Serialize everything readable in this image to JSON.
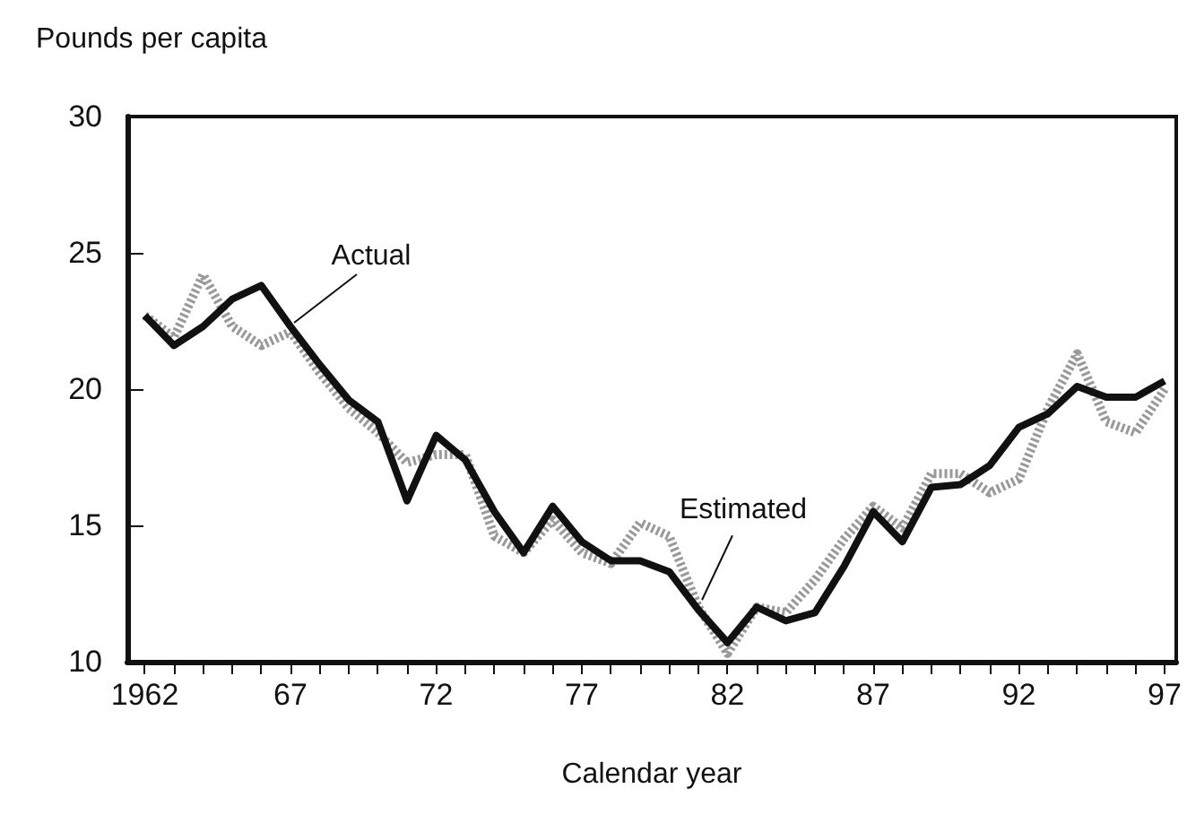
{
  "chart_data": {
    "type": "line",
    "ylabel": "Pounds per capita",
    "xlabel": "Calendar year",
    "x": [
      1962,
      1963,
      1964,
      1965,
      1966,
      1967,
      1968,
      1969,
      1970,
      1971,
      1972,
      1973,
      1974,
      1975,
      1976,
      1977,
      1978,
      1979,
      1980,
      1981,
      1982,
      1983,
      1984,
      1985,
      1986,
      1987,
      1988,
      1989,
      1990,
      1991,
      1992,
      1993,
      1994,
      1995,
      1996,
      1997
    ],
    "series": [
      {
        "name": "Actual",
        "color": "#111111",
        "line_style": "solid",
        "values": [
          22.7,
          21.6,
          22.3,
          23.3,
          23.8,
          22.3,
          20.9,
          19.6,
          18.8,
          15.9,
          18.3,
          17.4,
          15.5,
          14.0,
          15.7,
          14.4,
          13.7,
          13.7,
          13.3,
          11.9,
          10.7,
          12.0,
          11.5,
          11.8,
          13.5,
          15.5,
          14.4,
          16.4,
          16.5,
          17.2,
          18.6,
          19.1,
          20.1,
          19.7,
          19.7,
          20.3
        ]
      },
      {
        "name": "Estimated",
        "color": "#999999",
        "line_style": "dotted",
        "values": [
          22.7,
          21.9,
          24.2,
          22.3,
          21.6,
          22.1,
          20.6,
          19.3,
          18.4,
          17.3,
          17.6,
          17.6,
          14.6,
          14.0,
          15.2,
          14.0,
          13.6,
          15.1,
          14.6,
          12.0,
          10.3,
          12.0,
          11.8,
          13.0,
          14.5,
          15.7,
          14.9,
          16.9,
          16.9,
          16.2,
          16.7,
          19.3,
          21.3,
          18.8,
          18.4,
          20.0
        ]
      }
    ],
    "xlim": [
      1961.4,
      1997.4
    ],
    "xticks": [
      {
        "value": 1962,
        "label": "1962"
      },
      {
        "value": 1963,
        "label": null
      },
      {
        "value": 1964,
        "label": null
      },
      {
        "value": 1965,
        "label": null
      },
      {
        "value": 1966,
        "label": null
      },
      {
        "value": 1967,
        "label": "67"
      },
      {
        "value": 1968,
        "label": null
      },
      {
        "value": 1969,
        "label": null
      },
      {
        "value": 1970,
        "label": null
      },
      {
        "value": 1971,
        "label": null
      },
      {
        "value": 1972,
        "label": "72"
      },
      {
        "value": 1973,
        "label": null
      },
      {
        "value": 1974,
        "label": null
      },
      {
        "value": 1975,
        "label": null
      },
      {
        "value": 1976,
        "label": null
      },
      {
        "value": 1977,
        "label": "77"
      },
      {
        "value": 1978,
        "label": null
      },
      {
        "value": 1979,
        "label": null
      },
      {
        "value": 1980,
        "label": null
      },
      {
        "value": 1981,
        "label": null
      },
      {
        "value": 1982,
        "label": "82"
      },
      {
        "value": 1983,
        "label": null
      },
      {
        "value": 1984,
        "label": null
      },
      {
        "value": 1985,
        "label": null
      },
      {
        "value": 1986,
        "label": null
      },
      {
        "value": 1987,
        "label": "87"
      },
      {
        "value": 1988,
        "label": null
      },
      {
        "value": 1989,
        "label": null
      },
      {
        "value": 1990,
        "label": null
      },
      {
        "value": 1991,
        "label": null
      },
      {
        "value": 1992,
        "label": "92"
      },
      {
        "value": 1993,
        "label": null
      },
      {
        "value": 1994,
        "label": null
      },
      {
        "value": 1995,
        "label": null
      },
      {
        "value": 1996,
        "label": null
      },
      {
        "value": 1997,
        "label": "97"
      }
    ],
    "ylim": [
      10,
      30
    ],
    "yticks": [
      10,
      15,
      20,
      25,
      30
    ],
    "grid": false,
    "legend": false,
    "marker": "none"
  }
}
